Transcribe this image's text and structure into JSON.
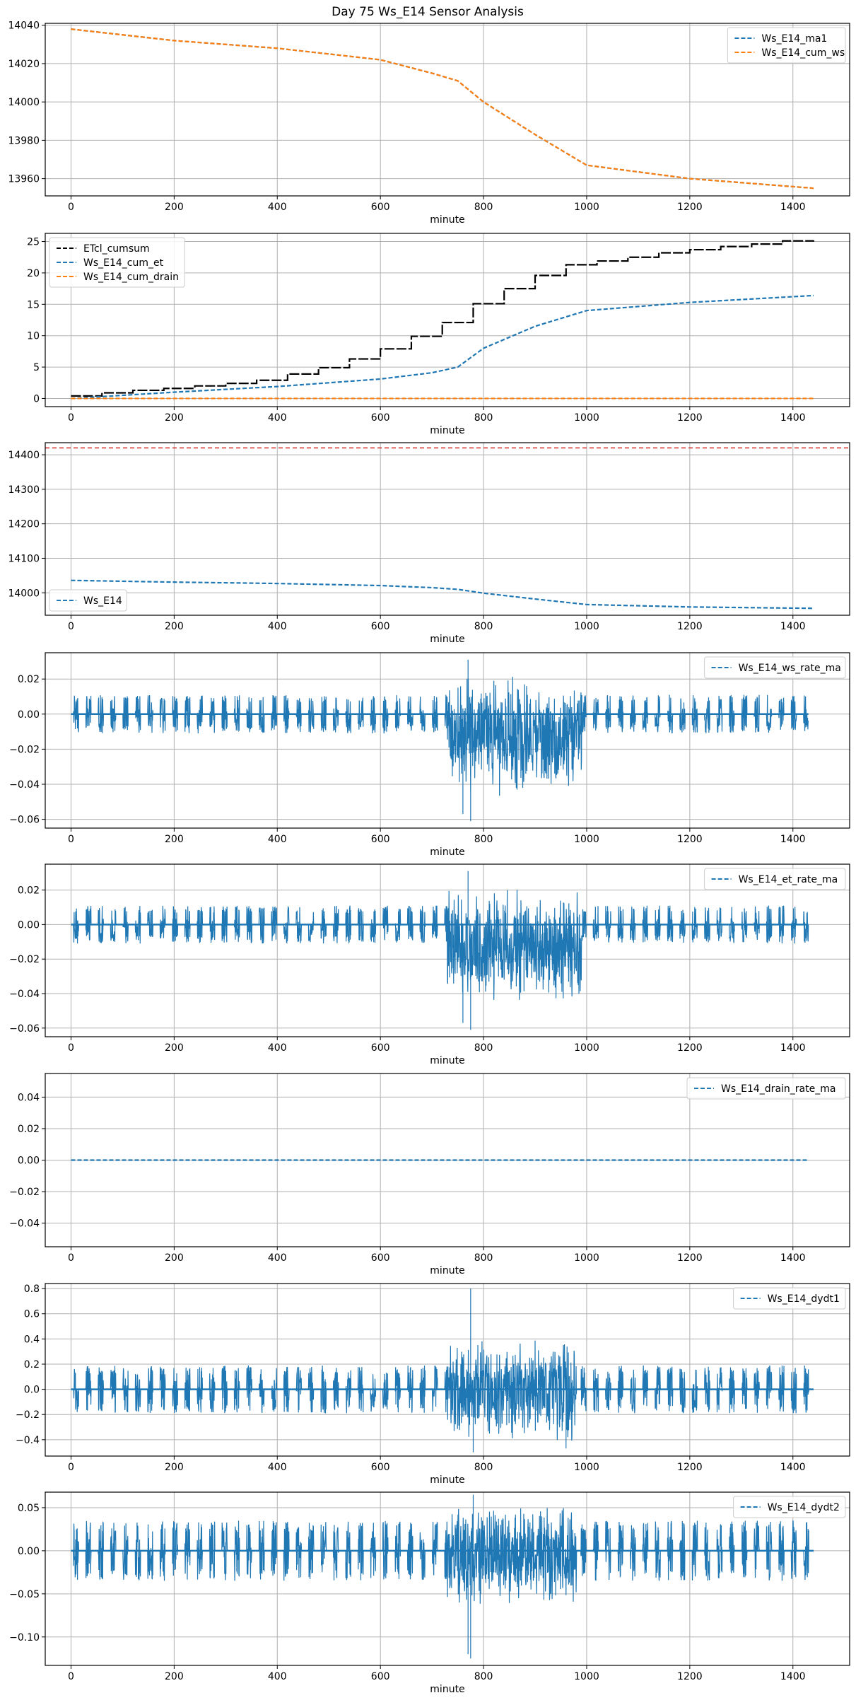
{
  "figure_title": "Day 75 Ws_E14 Sensor Analysis",
  "chart_data": [
    {
      "type": "line",
      "xlabel": "minute",
      "xlim": [
        -50,
        1510
      ],
      "ylim": [
        13951,
        14041
      ],
      "xticks": [
        0,
        200,
        400,
        600,
        800,
        1000,
        1200,
        1400
      ],
      "yticks": [
        13960,
        13980,
        14000,
        14020,
        14040
      ],
      "legend": "upper right",
      "grid": true,
      "series": [
        {
          "name": "Ws_E14_ma1",
          "color": "#1f77b4",
          "style": "dashed",
          "x": [
            0,
            200,
            400,
            600,
            700,
            750,
            800,
            900,
            1000,
            1200,
            1440
          ],
          "y": [
            14038,
            14032,
            14028,
            14022,
            14015,
            14011,
            14000,
            13983,
            13967,
            13960,
            13955
          ]
        },
        {
          "name": "Ws_E14_cum_ws",
          "color": "#ff7f0e",
          "style": "dashed",
          "x": [
            0,
            200,
            400,
            600,
            700,
            750,
            800,
            900,
            1000,
            1200,
            1440
          ],
          "y": [
            14038,
            14032,
            14028,
            14022,
            14015,
            14011,
            14000,
            13983,
            13967,
            13960,
            13955
          ]
        }
      ]
    },
    {
      "type": "line",
      "xlabel": "minute",
      "xlim": [
        -50,
        1510
      ],
      "ylim": [
        -1.3,
        26.3
      ],
      "xticks": [
        0,
        200,
        400,
        600,
        800,
        1000,
        1200,
        1400
      ],
      "yticks": [
        0,
        5,
        10,
        15,
        20,
        25
      ],
      "legend": "upper left",
      "grid": true,
      "series": [
        {
          "name": "ETcl_cumsum",
          "color": "#000000",
          "style": "step",
          "x": [
            0,
            60,
            120,
            180,
            240,
            300,
            360,
            420,
            480,
            540,
            600,
            660,
            720,
            780,
            840,
            900,
            960,
            1020,
            1080,
            1140,
            1200,
            1260,
            1320,
            1380,
            1440
          ],
          "y": [
            0.4,
            0.9,
            1.3,
            1.6,
            2.0,
            2.4,
            2.9,
            3.9,
            4.9,
            6.3,
            7.9,
            9.9,
            12.1,
            15.1,
            17.5,
            19.6,
            21.3,
            21.9,
            22.5,
            23.2,
            23.7,
            24.2,
            24.6,
            25.1,
            25.2
          ]
        },
        {
          "name": "Ws_E14_cum_et",
          "color": "#1f77b4",
          "style": "dashed",
          "x": [
            0,
            200,
            400,
            600,
            700,
            750,
            800,
            900,
            1000,
            1200,
            1440
          ],
          "y": [
            0,
            1.0,
            1.9,
            3.1,
            4.1,
            5.0,
            8.0,
            11.5,
            14.0,
            15.3,
            16.4
          ]
        },
        {
          "name": "Ws_E14_cum_drain",
          "color": "#ff7f0e",
          "style": "dashed",
          "x": [
            0,
            1440
          ],
          "y": [
            0,
            0
          ]
        }
      ]
    },
    {
      "type": "line",
      "xlabel": "minute",
      "xlim": [
        -50,
        1510
      ],
      "ylim": [
        13935,
        14435
      ],
      "xticks": [
        0,
        200,
        400,
        600,
        800,
        1000,
        1200,
        1400
      ],
      "yticks": [
        14000,
        14100,
        14200,
        14300,
        14400
      ],
      "legend": "lower left",
      "grid": true,
      "hline": {
        "y": 14420,
        "color": "#d62728",
        "style": "dashed"
      },
      "series": [
        {
          "name": "Ws_E14",
          "color": "#1f77b4",
          "style": "dashed",
          "x": [
            0,
            200,
            400,
            600,
            700,
            750,
            800,
            900,
            1000,
            1200,
            1440
          ],
          "y": [
            14036,
            14031,
            14027,
            14021,
            14015,
            14010,
            13999,
            13982,
            13966,
            13959,
            13955
          ]
        }
      ]
    },
    {
      "type": "line",
      "xlabel": "minute",
      "xlim": [
        -50,
        1510
      ],
      "ylim": [
        -0.065,
        0.035
      ],
      "xticks": [
        0,
        200,
        400,
        600,
        800,
        1000,
        1200,
        1400
      ],
      "yticks": [
        -0.06,
        -0.04,
        -0.02,
        0.0,
        0.02
      ],
      "legend": "upper right",
      "grid": true,
      "series": [
        {
          "name": "Ws_E14_ws_rate_ma",
          "color": "#1f77b4",
          "style": "noisy",
          "xmax": 1430,
          "bursts": {
            "period": 24,
            "start": 5,
            "width": 10,
            "amp": 0.011,
            "bias": -0.002
          },
          "active": {
            "start": 730,
            "end": 990,
            "amp": 0.035,
            "bias": -0.012
          },
          "extremes": [
            [
              770,
              0.031
            ],
            [
              775,
              -0.061
            ],
            [
              760,
              -0.057
            ]
          ]
        }
      ]
    },
    {
      "type": "line",
      "xlabel": "minute",
      "xlim": [
        -50,
        1510
      ],
      "ylim": [
        -0.065,
        0.035
      ],
      "xticks": [
        0,
        200,
        400,
        600,
        800,
        1000,
        1200,
        1400
      ],
      "yticks": [
        -0.06,
        -0.04,
        -0.02,
        0.0,
        0.02
      ],
      "legend": "upper right",
      "grid": true,
      "series": [
        {
          "name": "Ws_E14_et_rate_ma",
          "color": "#1f77b4",
          "style": "noisy",
          "xmax": 1430,
          "bursts": {
            "period": 24,
            "start": 5,
            "width": 10,
            "amp": 0.011,
            "bias": -0.002
          },
          "active": {
            "start": 730,
            "end": 990,
            "amp": 0.035,
            "bias": -0.012
          },
          "extremes": [
            [
              770,
              0.031
            ],
            [
              775,
              -0.061
            ],
            [
              760,
              -0.057
            ]
          ]
        }
      ]
    },
    {
      "type": "line",
      "xlabel": "minute",
      "xlim": [
        -50,
        1510
      ],
      "ylim": [
        -0.055,
        0.055
      ],
      "xticks": [
        0,
        200,
        400,
        600,
        800,
        1000,
        1200,
        1400
      ],
      "yticks": [
        -0.04,
        -0.02,
        0.0,
        0.02,
        0.04
      ],
      "legend": "upper right",
      "grid": true,
      "series": [
        {
          "name": "Ws_E14_drain_rate_ma",
          "color": "#1f77b4",
          "style": "dashed",
          "x": [
            0,
            1430
          ],
          "y": [
            0,
            0
          ]
        }
      ]
    },
    {
      "type": "line",
      "xlabel": "minute",
      "xlim": [
        -50,
        1510
      ],
      "ylim": [
        -0.53,
        0.84
      ],
      "xticks": [
        0,
        200,
        400,
        600,
        800,
        1000,
        1200,
        1400
      ],
      "yticks": [
        -0.4,
        -0.2,
        0.0,
        0.2,
        0.4,
        0.6,
        0.8
      ],
      "legend": "upper right",
      "grid": true,
      "series": [
        {
          "name": "Ws_E14_dydt1",
          "color": "#1f77b4",
          "style": "noisy",
          "xmax": 1440,
          "bursts": {
            "period": 24,
            "start": 5,
            "width": 10,
            "amp": 0.19,
            "bias": 0
          },
          "active": {
            "start": 730,
            "end": 980,
            "amp": 0.42,
            "bias": 0
          },
          "extremes": [
            [
              775,
              0.8
            ],
            [
              780,
              -0.5
            ],
            [
              960,
              -0.47
            ]
          ]
        }
      ]
    },
    {
      "type": "line",
      "xlabel": "minute",
      "xlim": [
        -50,
        1510
      ],
      "ylim": [
        -0.133,
        0.068
      ],
      "xticks": [
        0,
        200,
        400,
        600,
        800,
        1000,
        1200,
        1400
      ],
      "yticks": [
        -0.1,
        -0.05,
        0.0,
        0.05
      ],
      "legend": "upper right",
      "grid": true,
      "series": [
        {
          "name": "Ws_E14_dydt2",
          "color": "#1f77b4",
          "style": "noisy",
          "xmax": 1440,
          "bursts": {
            "period": 24,
            "start": 5,
            "width": 10,
            "amp": 0.035,
            "bias": 0
          },
          "active": {
            "start": 730,
            "end": 980,
            "amp": 0.06,
            "bias": -0.005
          },
          "extremes": [
            [
              775,
              -0.125
            ],
            [
              780,
              0.065
            ],
            [
              770,
              -0.12
            ]
          ]
        }
      ]
    }
  ]
}
